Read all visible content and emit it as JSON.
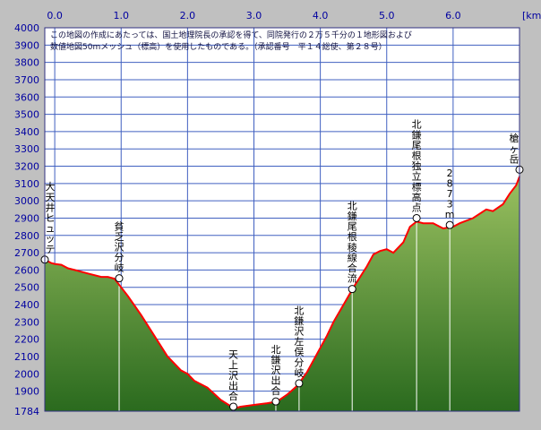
{
  "chart_data": {
    "type": "area",
    "unit_label": "[km]",
    "x_ticks": [
      "0.0",
      "1.0",
      "2.0",
      "3.0",
      "4.0",
      "5.0",
      "6.0"
    ],
    "y_ticks": [
      "1784",
      "1900",
      "2000",
      "2100",
      "2200",
      "2300",
      "2400",
      "2500",
      "2600",
      "2700",
      "2800",
      "2900",
      "3000",
      "3100",
      "3200",
      "3300",
      "3400",
      "3500",
      "3600",
      "3700",
      "3800",
      "3900",
      "4000"
    ],
    "xlim": [
      -0.15,
      7.0
    ],
    "ylim": [
      1784,
      4000
    ],
    "grid": true,
    "note_lines": [
      "この地図の作成にあたっては、国土地理院長の承認を得て、同院発行の２万５千分の１地形図および",
      "数値地図50mメッシュ（標高）を使用したものである。（承認番号　平１４総使、第２８号）"
    ],
    "profile": {
      "x": [
        -0.15,
        -0.05,
        0.0,
        0.1,
        0.2,
        0.3,
        0.5,
        0.7,
        0.8,
        0.9,
        1.0,
        1.1,
        1.3,
        1.5,
        1.7,
        1.9,
        2.0,
        2.1,
        2.3,
        2.5,
        2.7,
        2.8,
        3.0,
        3.2,
        3.35,
        3.5,
        3.65,
        3.8,
        4.0,
        4.1,
        4.2,
        4.35,
        4.5,
        4.7,
        4.8,
        4.9,
        5.0,
        5.1,
        5.25,
        5.35,
        5.45,
        5.55,
        5.7,
        5.85,
        6.0,
        6.1,
        6.3,
        6.5,
        6.6,
        6.75,
        6.85,
        6.95,
        7.0
      ],
      "y": [
        2660,
        2640,
        2635,
        2630,
        2610,
        2600,
        2580,
        2560,
        2560,
        2550,
        2500,
        2450,
        2340,
        2220,
        2100,
        2020,
        2000,
        1960,
        1920,
        1850,
        1800,
        1810,
        1820,
        1830,
        1840,
        1880,
        1930,
        2010,
        2150,
        2220,
        2300,
        2400,
        2500,
        2620,
        2690,
        2710,
        2720,
        2700,
        2760,
        2850,
        2880,
        2870,
        2870,
        2840,
        2850,
        2870,
        2900,
        2950,
        2940,
        2980,
        3040,
        3090,
        3140
      ]
    },
    "points": [
      {
        "x": -0.15,
        "y": 2660,
        "label": "大天井ヒュッテ"
      },
      {
        "x": 0.97,
        "y": 2552,
        "label": "貧乏沢分岐"
      },
      {
        "x": 2.69,
        "y": 1810,
        "label": "天上沢出合"
      },
      {
        "x": 3.33,
        "y": 1840,
        "label": "北鎌沢出合"
      },
      {
        "x": 3.68,
        "y": 1945,
        "label": "北鎌沢左俣分岐"
      },
      {
        "x": 4.48,
        "y": 2490,
        "label": "北鎌尾根稜線合流"
      },
      {
        "x": 5.45,
        "y": 2900,
        "label": "北鎌尾根独立標高点"
      },
      {
        "x": 5.95,
        "y": 2860,
        "label": "2873m"
      },
      {
        "x": 7.0,
        "y": 3180,
        "label": "槍ヶ岳"
      }
    ],
    "colors": {
      "background": "#c0c0c0",
      "plot_background": "#ffffff",
      "grid": "#4060c0",
      "fill_top": "#9ac060",
      "fill_bottom": "#2a6a1e",
      "line": "#ff0000",
      "axis_text": "#0000a0"
    }
  }
}
